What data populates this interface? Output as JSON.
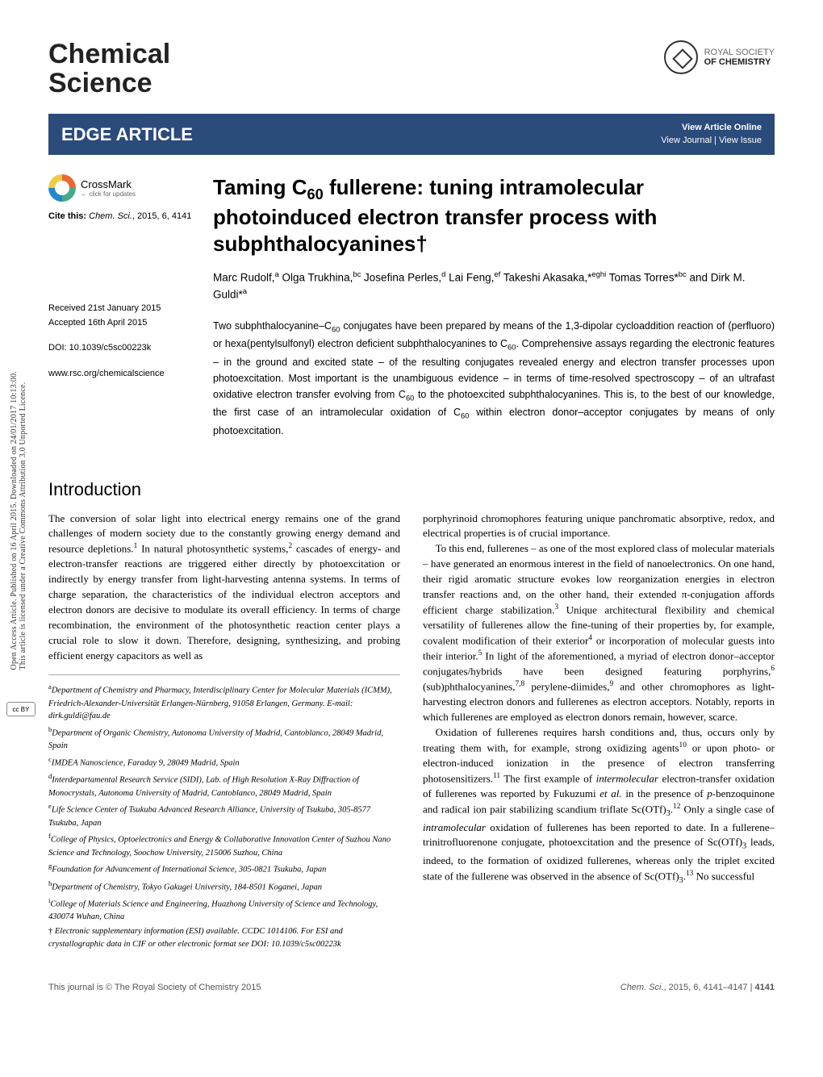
{
  "sidebar": {
    "oa_text": "Open Access Article. Published on 16 April 2015. Downloaded on 24/01/2017 10:13:00.",
    "license_text": "This article is licensed under a Creative Commons Attribution 3.0 Unported Licence.",
    "cc_label": "cc BY"
  },
  "header": {
    "journal_name_l1": "Chemical",
    "journal_name_l2": "Science",
    "publisher_l1": "ROYAL SOCIETY",
    "publisher_l2": "OF CHEMISTRY"
  },
  "bar": {
    "article_type": "EDGE ARTICLE",
    "view_online": "View Article Online",
    "view_journal": "View Journal | View Issue"
  },
  "left": {
    "crossmark": "CrossMark",
    "crossmark_sub": "← click for updates",
    "cite_prefix": "Cite this:",
    "cite_journal": "Chem. Sci.",
    "cite_rest": ", 2015, 6, 4141",
    "received": "Received 21st January 2015",
    "accepted": "Accepted 16th April 2015",
    "doi": "DOI: 10.1039/c5sc00223k",
    "url": "www.rsc.org/chemicalscience"
  },
  "article": {
    "title_pre": "Taming C",
    "title_sub": "60",
    "title_post": " fullerene: tuning intramolecular photoinduced electron transfer process with subphthalocyanines†",
    "authors_html": "Marc Rudolf,<sup>a</sup> Olga Trukhina,<sup>bc</sup> Josefina Perles,<sup>d</sup> Lai Feng,<sup>ef</sup> Takeshi Akasaka,*<sup>eghi</sup> Tomas Torres*<sup>bc</sup> and Dirk M. Guldi*<sup>a</sup>",
    "abstract_html": "Two subphthalocyanine–C<sub>60</sub> conjugates have been prepared by means of the 1,3-dipolar cycloaddition reaction of (perfluoro) or hexa(pentylsulfonyl) electron deficient subphthalocyanines to C<sub>60</sub>. Comprehensive assays regarding the electronic features – in the ground and excited state – of the resulting conjugates revealed energy and electron transfer processes upon photoexcitation. Most important is the unambiguous evidence – in terms of time-resolved spectroscopy – of an ultrafast oxidative electron transfer evolving from C<sub>60</sub> to the photoexcited subphthalocyanines. This is, to the best of our knowledge, the first case of an intramolecular oxidation of C<sub>60</sub> within electron donor–acceptor conjugates by means of only photoexcitation."
  },
  "section": {
    "heading": "Introduction",
    "para1": "The conversion of solar light into electrical energy remains one of the grand challenges of modern society due to the constantly growing energy demand and resource depletions.<sup>1</sup> In natural photosynthetic systems,<sup>2</sup> cascades of energy- and electron-transfer reactions are triggered either directly by photoexcitation or indirectly by energy transfer from light-harvesting antenna systems. In terms of charge separation, the characteristics of the individual electron acceptors and electron donors are decisive to modulate its overall efficiency. In terms of charge recombination, the environment of the photosynthetic reaction center plays a crucial role to slow it down. Therefore, designing, synthesizing, and probing efficient energy capacitors as well as",
    "para2": "porphyrinoid chromophores featuring unique panchromatic absorptive, redox, and electrical properties is of crucial importance.",
    "para3": "To this end, fullerenes – as one of the most explored class of molecular materials – have generated an enormous interest in the field of nanoelectronics. On one hand, their rigid aromatic structure evokes low reorganization energies in electron transfer reactions and, on the other hand, their extended π-conjugation affords efficient charge stabilization.<sup>3</sup> Unique architectural flexibility and chemical versatility of fullerenes allow the fine-tuning of their properties by, for example, covalent modification of their exterior<sup>4</sup> or incorporation of molecular guests into their interior.<sup>5</sup> In light of the aforementioned, a myriad of electron donor–acceptor conjugates/hybrids have been designed featuring porphyrins,<sup>6</sup> (sub)phthalocyanines,<sup>7,8</sup> perylene-diimides,<sup>9</sup> and other chromophores as light-harvesting electron donors and fullerenes as electron acceptors. Notably, reports in which fullerenes are employed as electron donors remain, however, scarce.",
    "para4": "Oxidation of fullerenes requires harsh conditions and, thus, occurs only by treating them with, for example, strong oxidizing agents<sup>10</sup> or upon photo- or electron-induced ionization in the presence of electron transferring photosensitizers.<sup>11</sup> The first example of <i>intermolecular</i> electron-transfer oxidation of fullerenes was reported by Fukuzumi <i>et al.</i> in the presence of <i>p</i>-benzoquinone and radical ion pair stabilizing scandium triflate Sc(OTf)<sub>3</sub>.<sup>12</sup> Only a single case of <i>intramolecular</i> oxidation of fullerenes has been reported to date. In a fullerene–trinitrofluorenone conjugate, photoexcitation and the presence of Sc(OTf)<sub>3</sub> leads, indeed, to the formation of oxidized fullerenes, whereas only the triplet excited state of the fullerene was observed in the absence of Sc(OTf)<sub>3</sub>.<sup>13</sup> No successful"
  },
  "affiliations": [
    "<sup>a</sup>Department of Chemistry and Pharmacy, Interdisciplinary Center for Molecular Materials (ICMM), Friedrich-Alexander-Universität Erlangen-Nürnberg, 91058 Erlangen, Germany. E-mail: dirk.guldi@fau.de",
    "<sup>b</sup>Department of Organic Chemistry, Autonoma University of Madrid, Cantoblanco, 28049 Madrid, Spain",
    "<sup>c</sup>IMDEA Nanoscience, Faraday 9, 28049 Madrid, Spain",
    "<sup>d</sup>Interdepartamental Research Service (SIDI), Lab. of High Resolution X-Ray Diffraction of Monocrystals, Autonoma University of Madrid, Cantoblanco, 28049 Madrid, Spain",
    "<sup>e</sup>Life Science Center of Tsukuba Advanced Research Alliance, University of Tsukuba, 305-8577 Tsukuba, Japan",
    "<sup>f</sup>College of Physics, Optoelectronics and Energy & Collaborative Innovation Center of Suzhou Nano Science and Technology, Soochow University, 215006 Suzhou, China",
    "<sup>g</sup>Foundation for Advancement of International Science, 305-0821 Tsukuba, Japan",
    "<sup>h</sup>Department of Chemistry, Tokyo Gakugei University, 184-8501 Koganei, Japan",
    "<sup>i</sup>College of Materials Science and Engineering, Huazhong University of Science and Technology, 430074 Wuhan, China",
    "<span class=\"dagger\">†</span> Electronic supplementary information (ESI) available. CCDC 1014106. For ESI and crystallographic data in CIF or other electronic format see DOI: 10.1039/c5sc00223k"
  ],
  "footer": {
    "left": "This journal is © The Royal Society of Chemistry 2015",
    "right_journal": "Chem. Sci.",
    "right_rest": ", 2015, 6, 4141–4147 | ",
    "right_page": "4141"
  },
  "colors": {
    "bar_bg": "#2b4b7a",
    "text": "#000000",
    "footer_text": "#555555"
  }
}
